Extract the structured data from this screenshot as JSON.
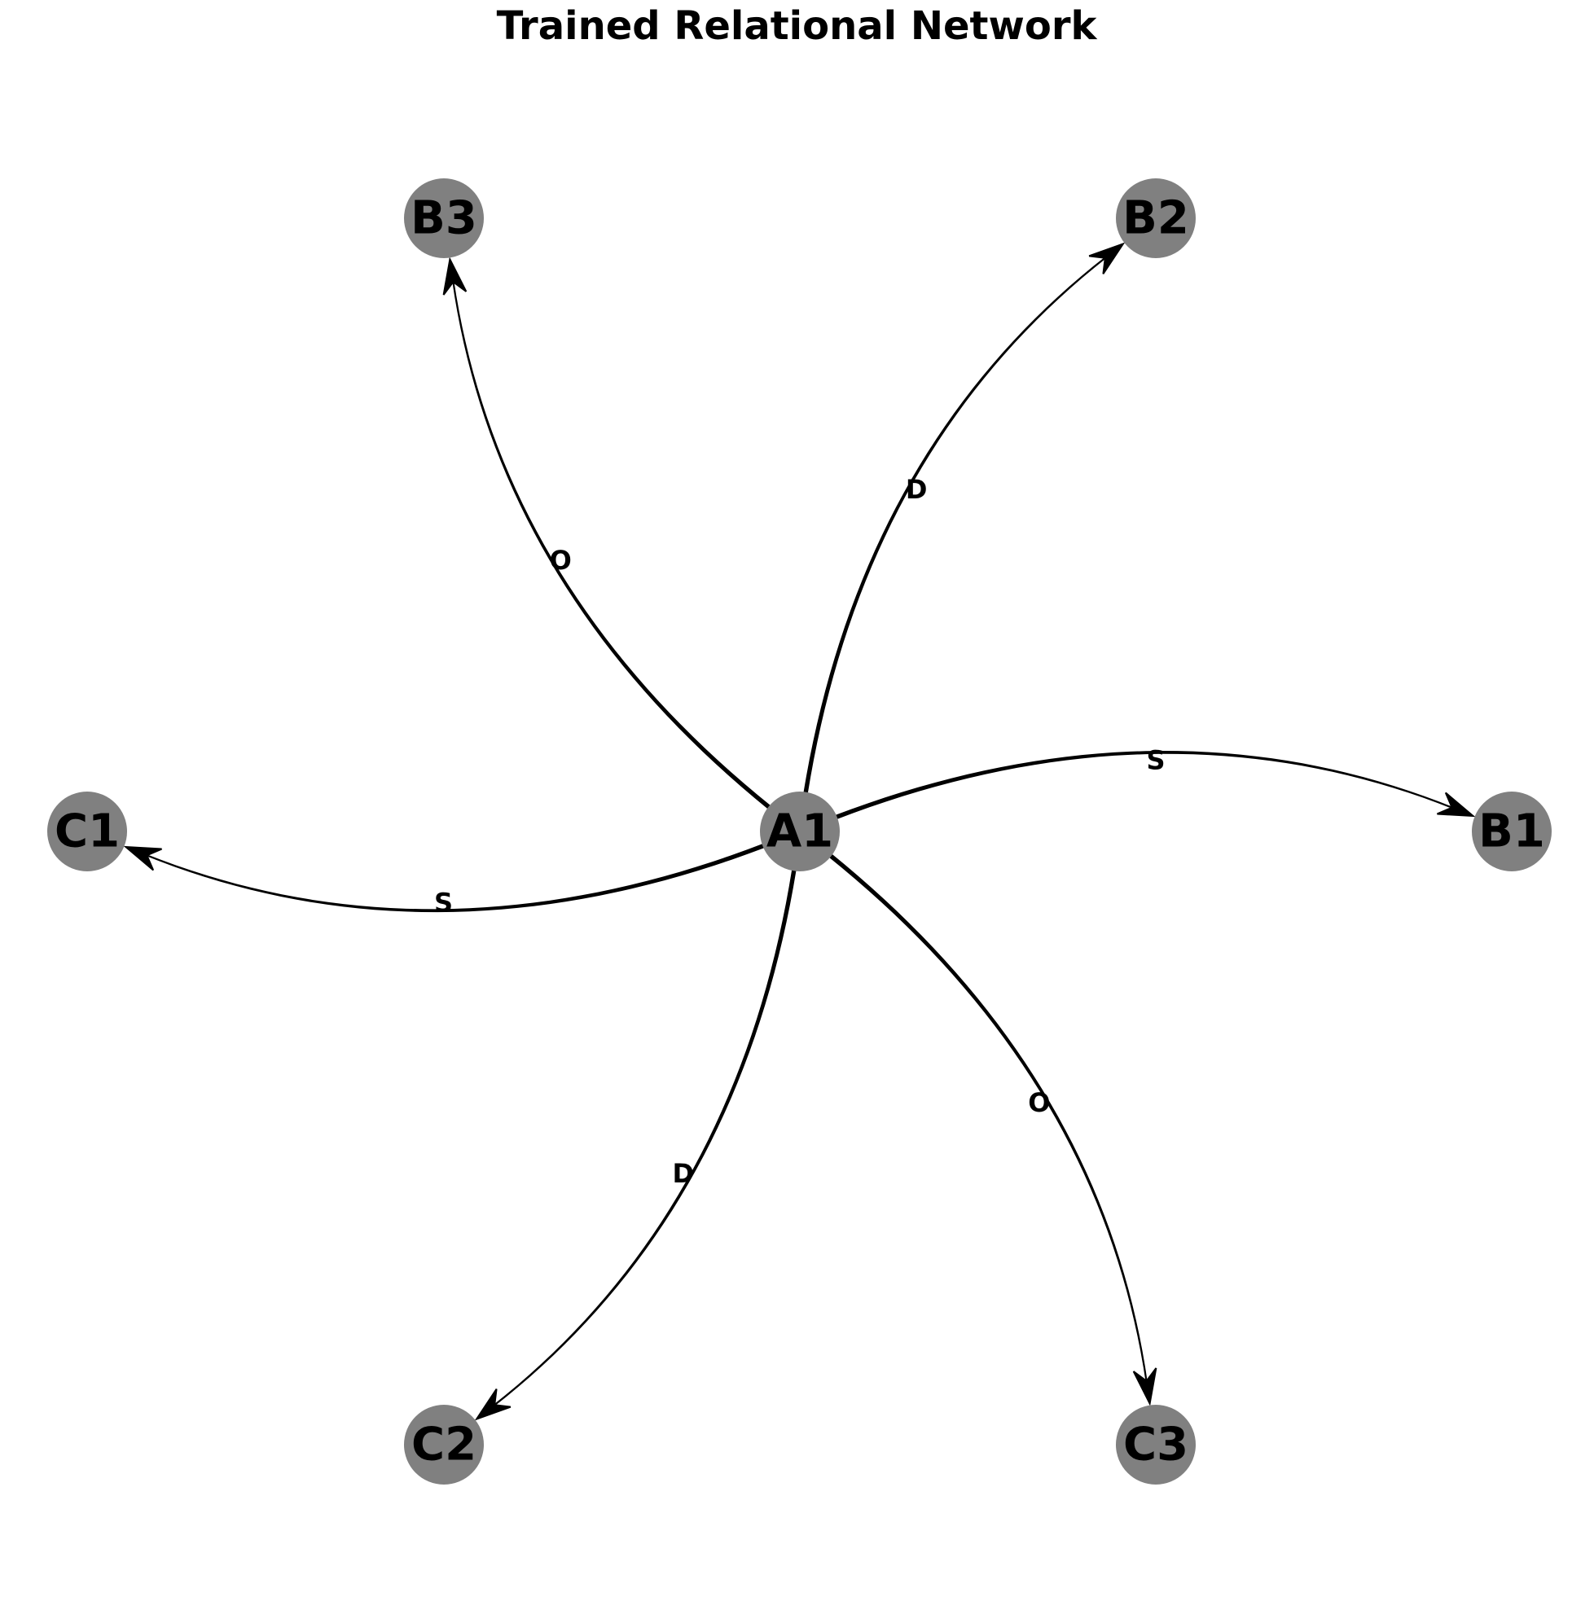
{
  "title": "Trained Relational Network",
  "colors": {
    "node_fill": "#808080",
    "edge": "#000000",
    "background": "#ffffff"
  },
  "nodes": [
    {
      "id": "A1",
      "label": "A1"
    },
    {
      "id": "B1",
      "label": "B1"
    },
    {
      "id": "B2",
      "label": "B2"
    },
    {
      "id": "B3",
      "label": "B3"
    },
    {
      "id": "C1",
      "label": "C1"
    },
    {
      "id": "C2",
      "label": "C2"
    },
    {
      "id": "C3",
      "label": "C3"
    }
  ],
  "edges": [
    {
      "source": "A1",
      "target": "B1",
      "label": "S"
    },
    {
      "source": "A1",
      "target": "B2",
      "label": "D"
    },
    {
      "source": "A1",
      "target": "B3",
      "label": "O"
    },
    {
      "source": "A1",
      "target": "C1",
      "label": "S"
    },
    {
      "source": "A1",
      "target": "C2",
      "label": "D"
    },
    {
      "source": "A1",
      "target": "C3",
      "label": "O"
    }
  ]
}
